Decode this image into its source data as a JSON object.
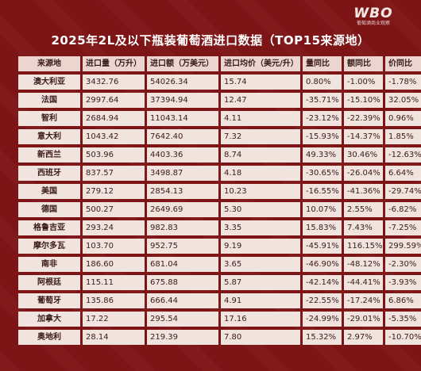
{
  "logo": {
    "mark": "WBO",
    "sub": "葡萄酒商业观察"
  },
  "title": "2025年2L及以下瓶装葡萄酒进口数据（TOP15来源地）",
  "columns": [
    "来源地",
    "进口量（万升）",
    "进口额（万美元）",
    "进口均价（美元/升）",
    "量同比",
    "额同比",
    "价同比"
  ],
  "rows": [
    [
      "澳大利亚",
      "3432.76",
      "54026.34",
      "15.74",
      "0.80%",
      "-1.00%",
      "-1.78%"
    ],
    [
      "法国",
      "2997.64",
      "37394.94",
      "12.47",
      "-35.71%",
      "-15.10%",
      "32.05%"
    ],
    [
      "智利",
      "2684.94",
      "11043.14",
      "4.11",
      "-23.12%",
      "-22.39%",
      "0.96%"
    ],
    [
      "意大利",
      "1043.42",
      "7642.40",
      "7.32",
      "-15.93%",
      "-14.37%",
      "1.85%"
    ],
    [
      "新西兰",
      "503.96",
      "4403.36",
      "8.74",
      "49.33%",
      "30.46%",
      "-12.63%"
    ],
    [
      "西班牙",
      "837.57",
      "3498.87",
      "4.18",
      "-30.65%",
      "-26.04%",
      "6.64%"
    ],
    [
      "美国",
      "279.12",
      "2854.13",
      "10.23",
      "-16.55%",
      "-41.36%",
      "-29.74%"
    ],
    [
      "德国",
      "500.27",
      "2649.69",
      "5.30",
      "10.07%",
      "2.55%",
      "-6.82%"
    ],
    [
      "格鲁吉亚",
      "293.24",
      "982.83",
      "3.35",
      "15.83%",
      "7.43%",
      "-7.25%"
    ],
    [
      "摩尔多瓦",
      "103.70",
      "952.75",
      "9.19",
      "-45.91%",
      "116.15%",
      "299.59%"
    ],
    [
      "南非",
      "186.60",
      "681.04",
      "3.65",
      "-46.90%",
      "-48.12%",
      "-2.30%"
    ],
    [
      "阿根廷",
      "115.11",
      "675.88",
      "5.87",
      "-42.14%",
      "-44.41%",
      "-3.93%"
    ],
    [
      "葡萄牙",
      "135.86",
      "666.44",
      "4.91",
      "-22.55%",
      "-17.24%",
      "6.86%"
    ],
    [
      "加拿大",
      "17.22",
      "295.54",
      "17.16",
      "-24.99%",
      "-29.01%",
      "-5.35%"
    ],
    [
      "奥地利",
      "28.14",
      "219.39",
      "7.80",
      "15.32%",
      "2.97%",
      "-10.70%"
    ]
  ]
}
